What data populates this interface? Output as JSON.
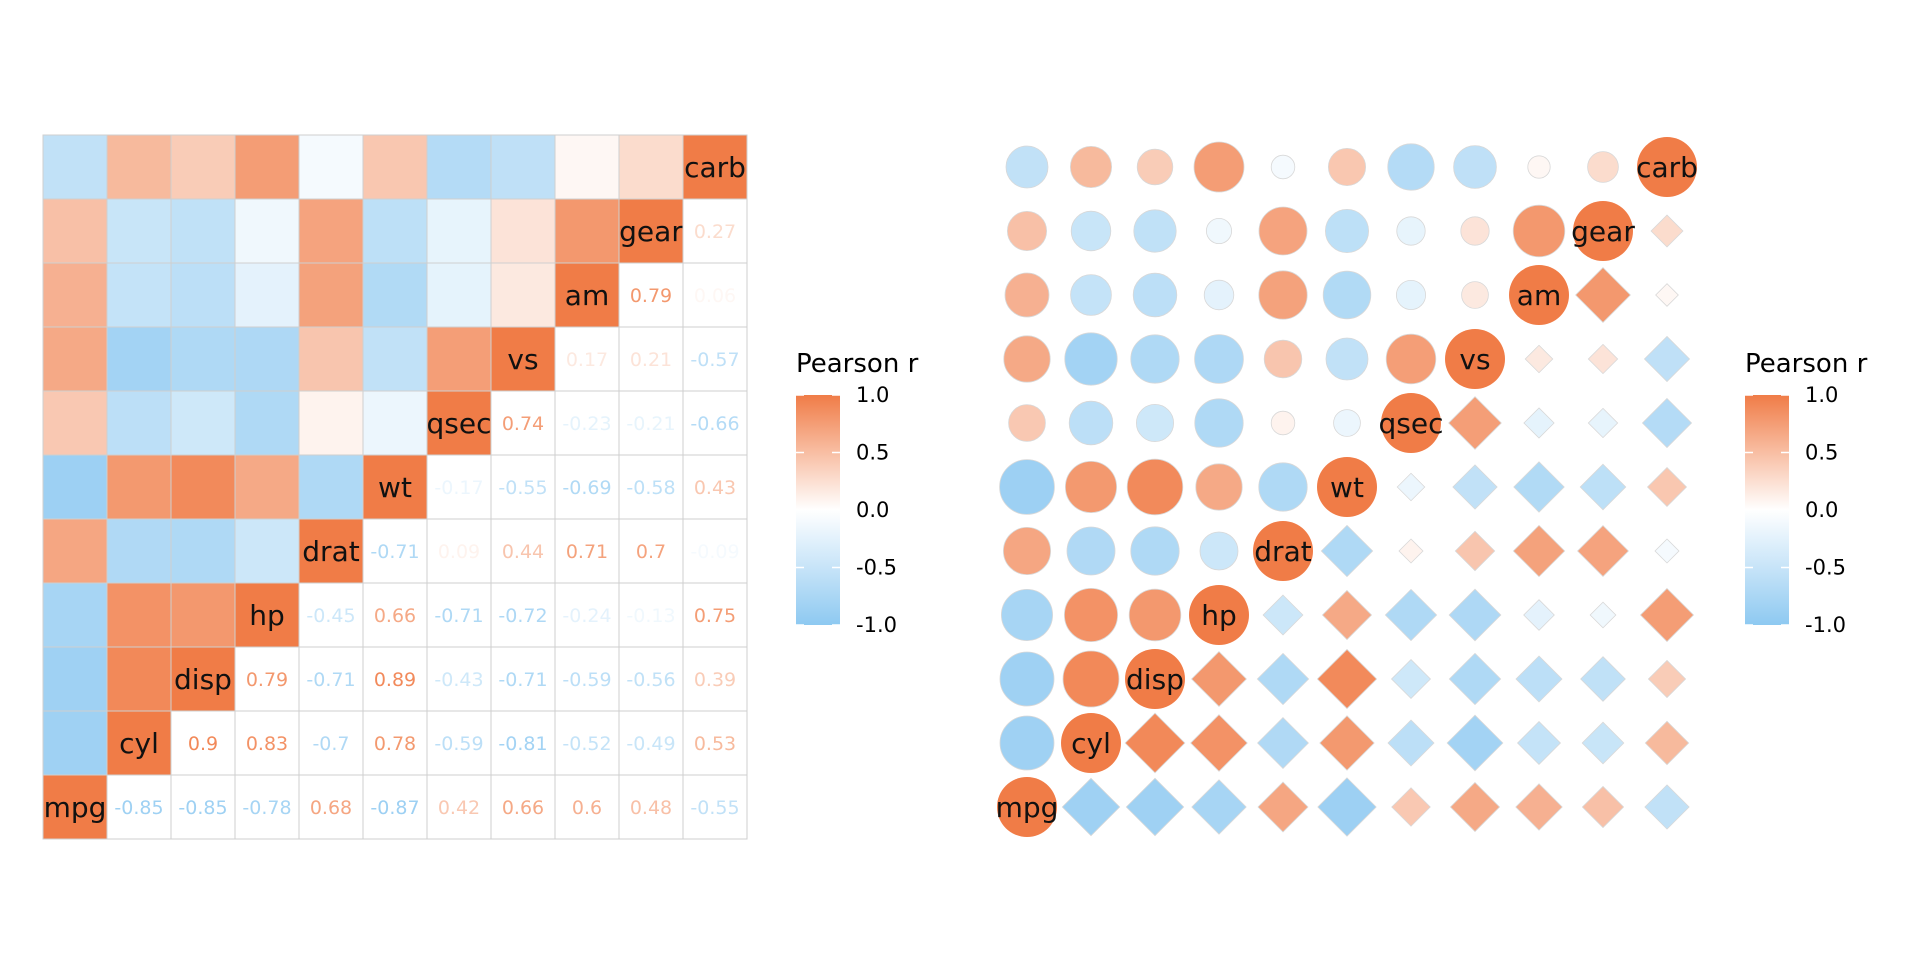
{
  "colors": {
    "negative": "#8ec9f1",
    "zero": "#ffffff",
    "positive": "#f07c47",
    "grid": "#cfcfcf",
    "cell_text_dark": "#111111"
  },
  "legend": {
    "title": "Pearson r",
    "ticks": [
      "1.0",
      "0.5",
      "0.0",
      "-0.5",
      "-1.0"
    ],
    "tick_values": [
      1.0,
      0.5,
      0.0,
      -0.5,
      -1.0
    ]
  },
  "chart_data": [
    {
      "type": "heatmap",
      "title": "",
      "legend_title": "Pearson r",
      "variables": [
        "mpg",
        "cyl",
        "disp",
        "hp",
        "drat",
        "wt",
        "qsec",
        "vs",
        "am",
        "gear",
        "carb"
      ],
      "matrix": [
        [
          1.0,
          -0.85,
          -0.85,
          -0.78,
          0.68,
          -0.87,
          0.42,
          0.66,
          0.6,
          0.48,
          -0.55
        ],
        [
          -0.85,
          1.0,
          0.9,
          0.83,
          -0.7,
          0.78,
          -0.59,
          -0.81,
          -0.52,
          -0.49,
          0.53
        ],
        [
          -0.85,
          0.9,
          1.0,
          0.79,
          -0.71,
          0.89,
          -0.43,
          -0.71,
          -0.59,
          -0.56,
          0.39
        ],
        [
          -0.78,
          0.83,
          0.79,
          1.0,
          -0.45,
          0.66,
          -0.71,
          -0.72,
          -0.24,
          -0.13,
          0.75
        ],
        [
          0.68,
          -0.7,
          -0.71,
          -0.45,
          1.0,
          -0.71,
          0.09,
          0.44,
          0.71,
          0.7,
          -0.09
        ],
        [
          -0.87,
          0.78,
          0.89,
          0.66,
          -0.71,
          1.0,
          -0.17,
          -0.55,
          -0.69,
          -0.58,
          0.43
        ],
        [
          0.42,
          -0.59,
          -0.43,
          -0.71,
          0.09,
          -0.17,
          1.0,
          0.74,
          -0.23,
          -0.21,
          -0.66
        ],
        [
          0.66,
          -0.81,
          -0.71,
          -0.72,
          0.44,
          -0.55,
          0.74,
          1.0,
          0.17,
          0.21,
          -0.57
        ],
        [
          0.6,
          -0.52,
          -0.59,
          -0.24,
          0.71,
          -0.69,
          -0.23,
          0.17,
          1.0,
          0.79,
          0.06
        ],
        [
          0.48,
          -0.49,
          -0.56,
          -0.13,
          0.7,
          -0.58,
          -0.21,
          0.21,
          0.79,
          1.0,
          0.27
        ],
        [
          -0.55,
          0.53,
          0.39,
          0.75,
          -0.09,
          0.43,
          -0.66,
          -0.57,
          0.06,
          0.27,
          1.0
        ]
      ],
      "upper": "tile",
      "lower": "label",
      "label_texts": [
        [
          "",
          "-0.85",
          "-0.85",
          "-0.78",
          "0.68",
          "-0.87",
          "0.42",
          "0.66",
          "0.6",
          "0.48",
          "-0.55"
        ],
        [
          "",
          "",
          "0.9",
          "0.83",
          "-0.7",
          "0.78",
          "-0.59",
          "-0.81",
          "-0.52",
          "-0.49",
          "0.53"
        ],
        [
          "",
          "",
          "",
          "0.79",
          "-0.71",
          "0.89",
          "-0.43",
          "-0.71",
          "-0.59",
          "-0.56",
          "0.39"
        ],
        [
          "",
          "",
          "",
          "",
          "-0.45",
          "0.66",
          "-0.71",
          "-0.72",
          "-0.24",
          "-0.13",
          "0.75"
        ],
        [
          "",
          "",
          "",
          "",
          "",
          "-0.71",
          "0.09",
          "0.44",
          "0.71",
          "0.7",
          "-0.09"
        ],
        [
          "",
          "",
          "",
          "",
          "",
          "",
          "-0.17",
          "-0.55",
          "-0.69",
          "-0.58",
          "0.43"
        ],
        [
          "",
          "",
          "",
          "",
          "",
          "",
          "",
          "0.74",
          "-0.23",
          "-0.21",
          "-0.66"
        ],
        [
          "",
          "",
          "",
          "",
          "",
          "",
          "",
          "",
          "0.17",
          "0.21",
          "-0.57"
        ],
        [
          "",
          "",
          "",
          "",
          "",
          "",
          "",
          "",
          "",
          "0.79",
          "0.06"
        ],
        [
          "",
          "",
          "",
          "",
          "",
          "",
          "",
          "",
          "",
          "",
          "0.27"
        ],
        [
          "",
          "",
          "",
          "",
          "",
          "",
          "",
          "",
          "",
          "",
          ""
        ]
      ],
      "color_range": [
        -1,
        1
      ],
      "grid": true
    },
    {
      "type": "heatmap",
      "title": "",
      "legend_title": "Pearson r",
      "variables": [
        "mpg",
        "cyl",
        "disp",
        "hp",
        "drat",
        "wt",
        "qsec",
        "vs",
        "am",
        "gear",
        "carb"
      ],
      "upper": "circle",
      "lower": "diamond",
      "color_range": [
        -1,
        1
      ],
      "grid": false
    }
  ]
}
